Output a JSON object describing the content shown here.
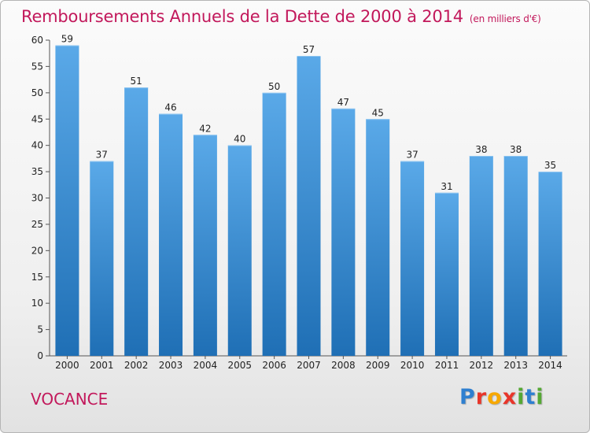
{
  "header": {
    "title": "Remboursements Annuels de la Dette de 2000 à 2014",
    "subtitle": "(en milliers d'€)"
  },
  "footer": {
    "commune": "VOCANCE",
    "logo": {
      "letters": [
        "P",
        "r",
        "o",
        "x",
        "i",
        "t",
        "i"
      ],
      "colors": [
        "#2e7fd0",
        "#e8352a",
        "#f7a800",
        "#e8352a",
        "#55a835",
        "#2e7fd0",
        "#55a835"
      ]
    }
  },
  "colors": {
    "title": "#c2185b",
    "bar_top": "#5aa9e8",
    "bar_bottom": "#1f6fb5"
  },
  "chart_data": {
    "type": "bar",
    "title": "Remboursements Annuels de la Dette de 2000 à 2014",
    "subtitle": "(en milliers d'€)",
    "xlabel": "",
    "ylabel": "",
    "categories": [
      "2000",
      "2001",
      "2002",
      "2003",
      "2004",
      "2005",
      "2006",
      "2007",
      "2008",
      "2009",
      "2010",
      "2011",
      "2012",
      "2013",
      "2014"
    ],
    "values": [
      59,
      37,
      51,
      46,
      42,
      40,
      50,
      57,
      47,
      45,
      37,
      31,
      38,
      38,
      35
    ],
    "ylim": [
      0,
      60
    ],
    "yticks": [
      0,
      5,
      10,
      15,
      20,
      25,
      30,
      35,
      40,
      45,
      50,
      55,
      60
    ],
    "grid": false,
    "data_labels": true
  }
}
